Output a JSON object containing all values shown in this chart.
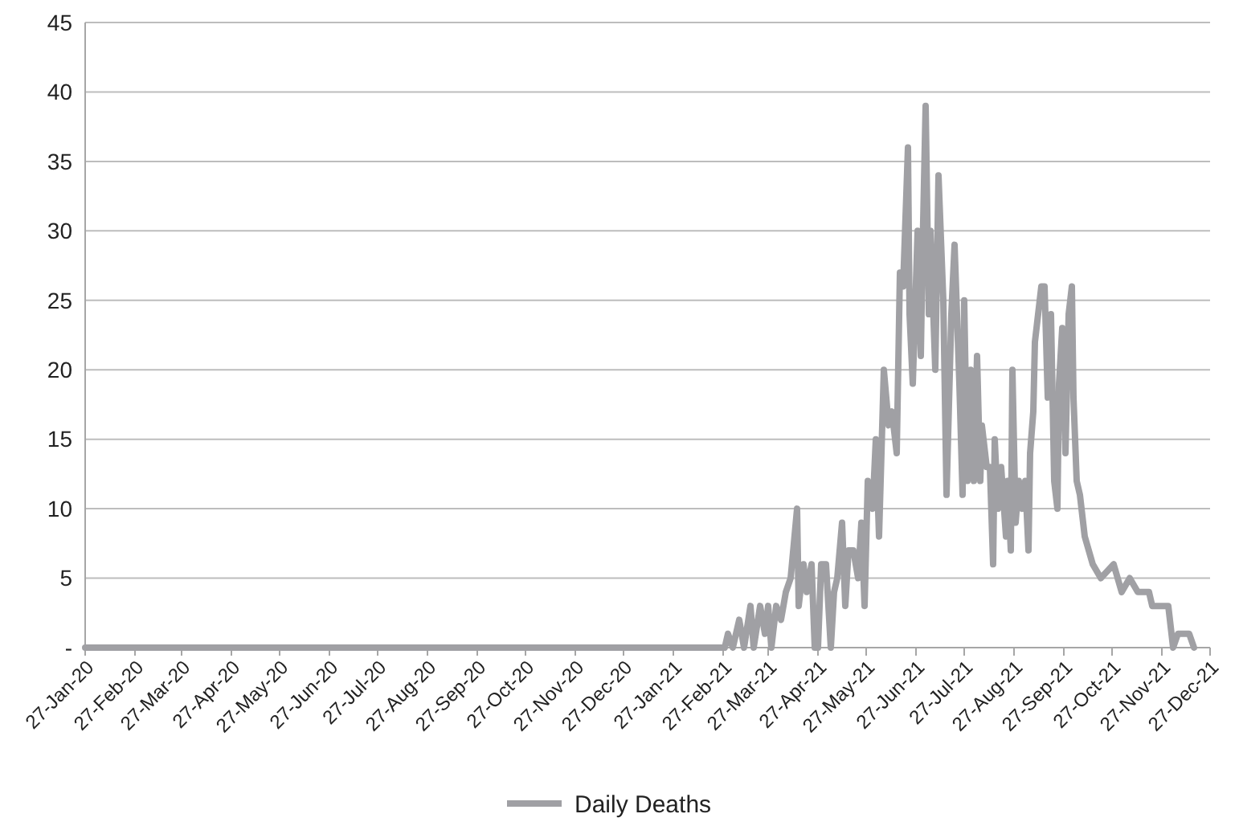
{
  "chart_data": {
    "type": "line",
    "legend": "bottom",
    "grid": "y",
    "marker": "none",
    "line_style": "solid",
    "xlim": [
      "2020-01-27",
      "2021-12-27"
    ],
    "xticks": [
      {
        "value": "2020-01-27",
        "label": "27-Jan-20"
      },
      {
        "value": "2020-02-27",
        "label": "27-Feb-20"
      },
      {
        "value": "2020-03-27",
        "label": "27-Mar-20"
      },
      {
        "value": "2020-04-27",
        "label": "27-Apr-20"
      },
      {
        "value": "2020-05-27",
        "label": "27-May-20"
      },
      {
        "value": "2020-06-27",
        "label": "27-Jun-20"
      },
      {
        "value": "2020-07-27",
        "label": "27-Jul-20"
      },
      {
        "value": "2020-08-27",
        "label": "27-Aug-20"
      },
      {
        "value": "2020-09-27",
        "label": "27-Sep-20"
      },
      {
        "value": "2020-10-27",
        "label": "27-Oct-20"
      },
      {
        "value": "2020-11-27",
        "label": "27-Nov-20"
      },
      {
        "value": "2020-12-27",
        "label": "27-Dec-20"
      },
      {
        "value": "2021-01-27",
        "label": "27-Jan-21"
      },
      {
        "value": "2021-02-27",
        "label": "27-Feb-21"
      },
      {
        "value": "2021-03-27",
        "label": "27-Mar-21"
      },
      {
        "value": "2021-04-27",
        "label": "27-Apr-21"
      },
      {
        "value": "2021-05-27",
        "label": "27-May-21"
      },
      {
        "value": "2021-06-27",
        "label": "27-Jun-21"
      },
      {
        "value": "2021-07-27",
        "label": "27-Jul-21"
      },
      {
        "value": "2021-08-27",
        "label": "27-Aug-21"
      },
      {
        "value": "2021-09-27",
        "label": "27-Sep-21"
      },
      {
        "value": "2021-10-27",
        "label": "27-Oct-21"
      },
      {
        "value": "2021-11-27",
        "label": "27-Nov-21"
      },
      {
        "value": "2021-12-27",
        "label": "27-Dec-21"
      }
    ],
    "ylim": [
      0,
      45
    ],
    "yticks": [
      {
        "value": 0,
        "label": "-"
      },
      5,
      10,
      15,
      20,
      25,
      30,
      35,
      40,
      45
    ],
    "x": [
      "2020-01-27",
      "2021-02-28",
      "2021-03-02",
      "2021-03-05",
      "2021-03-09",
      "2021-03-12",
      "2021-03-16",
      "2021-03-18",
      "2021-03-22",
      "2021-03-25",
      "2021-03-27",
      "2021-03-29",
      "2021-04-01",
      "2021-04-04",
      "2021-04-07",
      "2021-04-10",
      "2021-04-14",
      "2021-04-15",
      "2021-04-18",
      "2021-04-20",
      "2021-04-23",
      "2021-04-25",
      "2021-04-27",
      "2021-04-29",
      "2021-05-02",
      "2021-05-05",
      "2021-05-07",
      "2021-05-09",
      "2021-05-12",
      "2021-05-14",
      "2021-05-16",
      "2021-05-19",
      "2021-05-22",
      "2021-05-24",
      "2021-05-26",
      "2021-05-28",
      "2021-05-31",
      "2021-06-02",
      "2021-06-04",
      "2021-06-07",
      "2021-06-10",
      "2021-06-12",
      "2021-06-15",
      "2021-06-17",
      "2021-06-19",
      "2021-06-22",
      "2021-06-23",
      "2021-06-25",
      "2021-06-28",
      "2021-06-30",
      "2021-07-01",
      "2021-07-03",
      "2021-07-05",
      "2021-07-06",
      "2021-07-09",
      "2021-07-11",
      "2021-07-14",
      "2021-07-16",
      "2021-07-19",
      "2021-07-21",
      "2021-07-24",
      "2021-07-26",
      "2021-07-27",
      "2021-07-29",
      "2021-07-31",
      "2021-08-02",
      "2021-08-04",
      "2021-08-06",
      "2021-08-07",
      "2021-08-10",
      "2021-08-12",
      "2021-08-14",
      "2021-08-15",
      "2021-08-17",
      "2021-08-19",
      "2021-08-22",
      "2021-08-23",
      "2021-08-25",
      "2021-08-26",
      "2021-08-28",
      "2021-08-30",
      "2021-09-01",
      "2021-09-03",
      "2021-09-05",
      "2021-09-06",
      "2021-09-08",
      "2021-09-09",
      "2021-09-11",
      "2021-09-13",
      "2021-09-15",
      "2021-09-17",
      "2021-09-19",
      "2021-09-21",
      "2021-09-23",
      "2021-09-24",
      "2021-09-26",
      "2021-09-28",
      "2021-09-30",
      "2021-10-02",
      "2021-10-03",
      "2021-10-05",
      "2021-10-07",
      "2021-10-10",
      "2021-10-15",
      "2021-10-20",
      "2021-10-28",
      "2021-11-02",
      "2021-11-07",
      "2021-11-12",
      "2021-11-19",
      "2021-11-21",
      "2021-12-01",
      "2021-12-04",
      "2021-12-07",
      "2021-12-14",
      "2021-12-17"
    ],
    "series": [
      {
        "name": "Daily Deaths",
        "color": "#a0a0a4",
        "values": [
          0,
          0,
          1,
          0,
          2,
          0,
          3,
          0,
          3,
          1,
          3,
          0,
          3,
          2,
          4,
          5,
          10,
          3,
          6,
          4,
          6,
          0,
          0,
          6,
          6,
          0,
          4,
          5,
          9,
          3,
          7,
          7,
          5,
          9,
          3,
          12,
          10,
          15,
          8,
          20,
          16,
          17,
          14,
          27,
          26,
          36,
          24,
          19,
          30,
          21,
          28,
          39,
          24,
          30,
          20,
          34,
          25,
          11,
          24,
          29,
          19,
          11,
          25,
          12,
          20,
          12,
          21,
          12,
          16,
          13,
          13,
          6,
          15,
          10,
          13,
          8,
          12,
          7,
          20,
          9,
          12,
          10,
          12,
          7,
          14,
          17,
          22,
          24,
          26,
          26,
          18,
          24,
          12,
          10,
          19,
          23,
          14,
          24,
          26,
          18,
          12,
          11,
          8,
          6,
          5,
          6,
          4,
          5,
          4,
          4,
          3,
          3,
          0,
          1,
          1,
          0
        ]
      }
    ]
  }
}
